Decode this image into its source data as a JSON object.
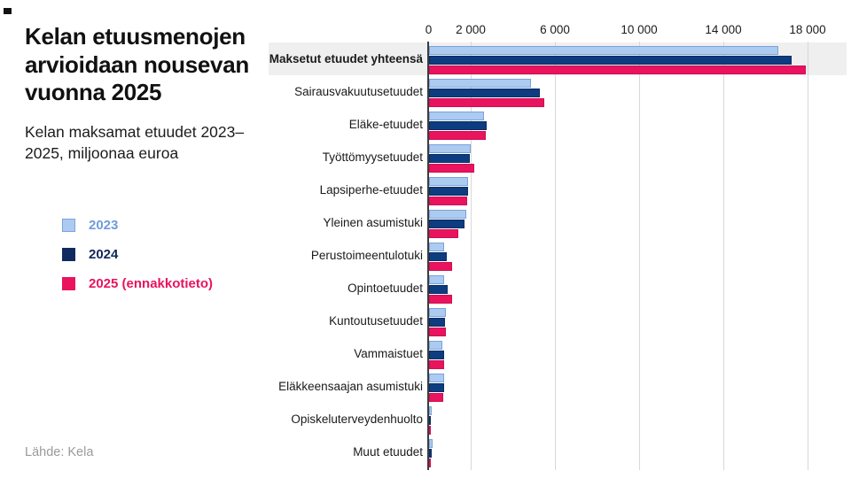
{
  "header": {
    "title": "Kelan etuusmenojen arvioidaan nousevan vuonna 2025",
    "subtitle": "Kelan maksamat etuudet 2023–2025, miljoonaa euroa"
  },
  "footer": {
    "source": "Lähde: Kela"
  },
  "legend": {
    "items": [
      {
        "label": "2023",
        "swatch_color": "#accbf1",
        "swatch_border": "#7aa3dc",
        "text_color": "#6f9bdd"
      },
      {
        "label": "2024",
        "swatch_color": "#0e2a5e",
        "swatch_border": "#0e2a5e",
        "text_color": "#13275b"
      },
      {
        "label": "2025 (ennakkotieto)",
        "swatch_color": "#e9135e",
        "swatch_border": "#e9135e",
        "text_color": "#e8135e"
      }
    ]
  },
  "chart_data": {
    "type": "bar",
    "orientation": "horizontal",
    "title": "Kelan maksamat etuudet 2023–2025",
    "unit": "miljoonaa euroa",
    "grid": true,
    "legend_position": "left",
    "xlim": [
      0,
      19600
    ],
    "x_ticks": [
      0,
      2000,
      6000,
      10000,
      14000,
      18000
    ],
    "x_tick_labels": [
      "0",
      "2 000",
      "6 000",
      "10 000",
      "14 000",
      "18 000"
    ],
    "highlight_category": "Maksetut etuudet yhteensä",
    "categories": [
      "Maksetut etuudet yhteensä",
      "Sairausvakuutusetuudet",
      "Eläke-etuudet",
      "Työttömyysetuudet",
      "Lapsiperhe-etuudet",
      "Yleinen asumistuki",
      "Perustoimeentulotuki",
      "Opintoetuudet",
      "Kuntoutusetuudet",
      "Vammaistuet",
      "Eläkkeensaajan asumistuki",
      "Opiskeluterveydenhuolto",
      "Muut etuudet"
    ],
    "series": [
      {
        "name": "2023",
        "color": "#accbf1",
        "border_color": "#7aa3dc",
        "values": [
          16600,
          4850,
          2640,
          2000,
          1870,
          1780,
          750,
          730,
          820,
          650,
          730,
          140,
          170
        ]
      },
      {
        "name": "2024",
        "color": "#0d3c80",
        "border_color": "#0b2d63",
        "values": [
          17250,
          5300,
          2750,
          1950,
          1880,
          1720,
          880,
          900,
          790,
          730,
          740,
          100,
          140
        ]
      },
      {
        "name": "2025 (ennakkotieto)",
        "color": "#e9135e",
        "border_color": "#cf0f55",
        "values": [
          17900,
          5500,
          2710,
          2180,
          1850,
          1390,
          1100,
          1100,
          810,
          740,
          680,
          80,
          100
        ]
      }
    ]
  }
}
